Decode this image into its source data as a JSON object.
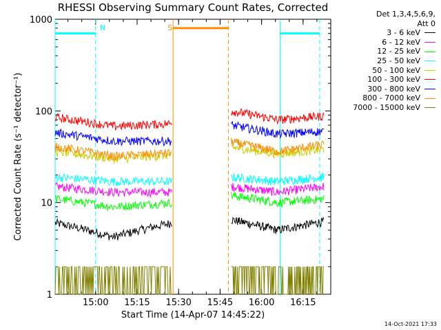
{
  "title": "RHESSI Observing Summary Count Rates, Corrected",
  "legend_header": [
    "Det 1,3,4,5,6,9,",
    "Att 0"
  ],
  "timestamp": "14-Oct-2021 17:33",
  "chart_data": {
    "type": "line",
    "title": "RHESSI Observing Summary Count Rates, Corrected",
    "xlabel": "Start Time (14-Apr-07 14:45:22)",
    "ylabel": "Corrected Count Rate (s⁻¹ detector⁻¹)",
    "yscale": "log",
    "xlim": [
      "14:45:22",
      "16:25:00"
    ],
    "ylim": [
      1,
      1000
    ],
    "x_ticks": [
      "15:00",
      "15:15",
      "15:30",
      "15:45",
      "16:00",
      "16:15"
    ],
    "y_ticks": [
      "1",
      "10",
      "100",
      "1000"
    ],
    "grid": false,
    "legend_position": "right",
    "segments": [
      {
        "start": "14:45:22",
        "end": "15:27:30"
      },
      {
        "start": "15:49:00",
        "end": "16:22:30"
      }
    ],
    "series": [
      {
        "name": "3 - 6 keV",
        "color": "#000000",
        "levels": [
          [
            6.0,
            4.2,
            6.0
          ],
          [
            6.5,
            5.0,
            6.2
          ]
        ]
      },
      {
        "name": "6 - 12 keV",
        "color": "#ff00ff",
        "levels": [
          [
            15,
            13,
            13
          ],
          [
            15,
            13,
            15
          ]
        ]
      },
      {
        "name": "12 - 25 keV",
        "color": "#00ff00",
        "levels": [
          [
            11,
            9,
            10
          ],
          [
            12,
            10,
            11
          ]
        ]
      },
      {
        "name": "25 - 50 keV",
        "color": "#00ffff",
        "levels": [
          [
            19,
            17,
            17
          ],
          [
            19,
            17,
            19
          ]
        ]
      },
      {
        "name": "50 - 100 keV",
        "color": "#cccc00",
        "levels": [
          [
            36,
            30,
            33
          ],
          [
            40,
            34,
            38
          ]
        ]
      },
      {
        "name": "100 - 300 keV",
        "color": "#ff0000",
        "levels": [
          [
            85,
            68,
            73
          ],
          [
            100,
            80,
            88
          ]
        ]
      },
      {
        "name": "300 - 800 keV",
        "color": "#0000ff",
        "levels": [
          [
            58,
            47,
            47
          ],
          [
            70,
            56,
            60
          ]
        ]
      },
      {
        "name": "800 - 7000 keV",
        "color": "#ff8c00",
        "levels": [
          [
            41,
            32,
            35
          ],
          [
            46,
            36,
            43
          ]
        ]
      },
      {
        "name": "7000 - 15000 keV",
        "color": "#808000",
        "levels": [
          [
            2,
            1.5,
            2
          ],
          [
            2,
            1.5,
            2
          ]
        ]
      }
    ],
    "annotations": [
      {
        "label": "N",
        "type": "night",
        "color": "#00ffff",
        "start": "14:45:22",
        "end": "15:00:00",
        "y": 700
      },
      {
        "label": "S",
        "type": "saa",
        "color": "#ff8c00",
        "start": "15:28:00",
        "end": "15:48:00",
        "y": 800
      },
      {
        "label": "",
        "type": "night",
        "color": "#00ffff",
        "start": "16:06:40",
        "end": "16:21:00",
        "y": 700
      }
    ]
  }
}
